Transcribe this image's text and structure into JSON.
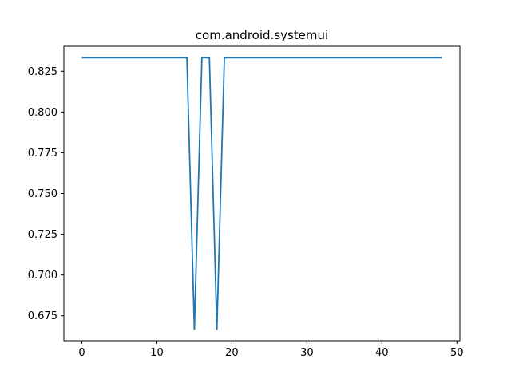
{
  "chart_data": {
    "type": "line",
    "title": "com.android.systemui",
    "xlabel": "",
    "ylabel": "",
    "xlim": [
      -2.4,
      50.4
    ],
    "ylim": [
      0.6597,
      0.8403
    ],
    "x_ticks": [
      0,
      10,
      20,
      30,
      40,
      50
    ],
    "x_tick_labels": [
      "0",
      "10",
      "20",
      "30",
      "40",
      "50"
    ],
    "y_ticks": [
      0.675,
      0.7,
      0.725,
      0.75,
      0.775,
      0.8,
      0.825
    ],
    "y_tick_labels": [
      "0.675",
      "0.700",
      "0.725",
      "0.750",
      "0.775",
      "0.800",
      "0.825"
    ],
    "grid": false,
    "series": [
      {
        "color": "#1f77b4",
        "x": [
          0,
          1,
          2,
          3,
          4,
          5,
          6,
          7,
          8,
          9,
          10,
          11,
          12,
          13,
          14,
          15,
          16,
          17,
          18,
          19,
          20,
          21,
          22,
          23,
          24,
          25,
          26,
          27,
          28,
          29,
          30,
          31,
          32,
          33,
          34,
          35,
          36,
          37,
          38,
          39,
          40,
          41,
          42,
          43,
          44,
          45,
          46,
          47,
          48
        ],
        "y": [
          0.8333,
          0.8333,
          0.8333,
          0.8333,
          0.8333,
          0.8333,
          0.8333,
          0.8333,
          0.8333,
          0.8333,
          0.8333,
          0.8333,
          0.8333,
          0.8333,
          0.8333,
          0.6667,
          0.8333,
          0.8333,
          0.6667,
          0.8333,
          0.8333,
          0.8333,
          0.8333,
          0.8333,
          0.8333,
          0.8333,
          0.8333,
          0.8333,
          0.8333,
          0.8333,
          0.8333,
          0.8333,
          0.8333,
          0.8333,
          0.8333,
          0.8333,
          0.8333,
          0.8333,
          0.8333,
          0.8333,
          0.8333,
          0.8333,
          0.8333,
          0.8333,
          0.8333,
          0.8333,
          0.8333,
          0.8333,
          0.8333
        ]
      }
    ]
  }
}
